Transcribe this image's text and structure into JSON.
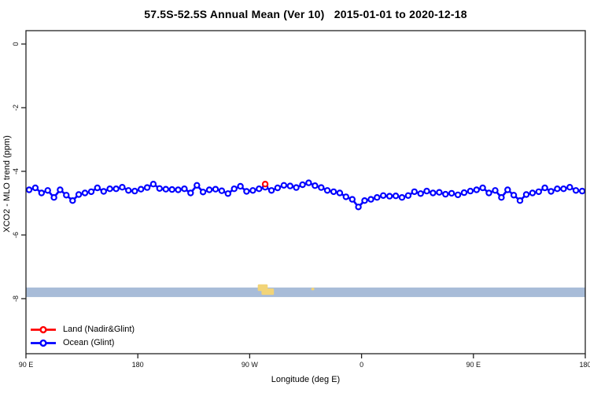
{
  "title": "57.5S-52.5S Annual Mean (Ver 10)   2015-01-01 to 2020-12-18",
  "axes": {
    "x_label": "Longitude (deg E)",
    "y_label": "XCO2 - MLO trend (ppm)"
  },
  "legend": {
    "items": [
      {
        "label": "Land (Nadir&Glint)",
        "color": "#ff0000"
      },
      {
        "label": "Ocean (Glint)",
        "color": "#0000ff"
      }
    ]
  },
  "colors": {
    "ocean_series": "#0000ff",
    "land_series": "#ff0000",
    "map_strip_ocean": "#a8bcd8",
    "map_strip_land": "#f2d478",
    "frame": "#222222"
  },
  "chart_data": {
    "type": "line",
    "title": "57.5S-52.5S Annual Mean (Ver 10)   2015-01-01 to 2020-12-18",
    "xlabel": "Longitude (deg E)",
    "ylabel": "XCO2 - MLO trend (ppm)",
    "xlim": [
      90,
      540
    ],
    "ylim": [
      -9.73,
      0.42
    ],
    "grid": false,
    "legend_position": "bottom-left",
    "x_ticks": [
      {
        "value": 90,
        "label": "90 E"
      },
      {
        "value": 180,
        "label": "180"
      },
      {
        "value": 270,
        "label": "90 W"
      },
      {
        "value": 360,
        "label": "0"
      },
      {
        "value": 450,
        "label": "90 E"
      },
      {
        "value": 540,
        "label": "180"
      }
    ],
    "y_ticks": [
      {
        "value": 0,
        "label": "0"
      },
      {
        "value": -2,
        "label": "-2"
      },
      {
        "value": -4,
        "label": "-4"
      },
      {
        "value": -6,
        "label": "-6"
      },
      {
        "value": -8,
        "label": "-8"
      }
    ],
    "series": [
      {
        "name": "Ocean (Glint)",
        "color": "#0000ff",
        "marker": "open-circle",
        "x": [
          92.5,
          97.5,
          102.5,
          107.5,
          112.5,
          117.5,
          122.5,
          127.5,
          132.5,
          137.5,
          142.5,
          147.5,
          152.5,
          157.5,
          162.5,
          167.5,
          172.5,
          177.5,
          182.5,
          187.5,
          192.5,
          197.5,
          202.5,
          207.5,
          212.5,
          217.5,
          222.5,
          227.5,
          232.5,
          237.5,
          242.5,
          247.5,
          252.5,
          257.5,
          262.5,
          267.5,
          272.5,
          277.5,
          282.5,
          287.5,
          292.5,
          297.5,
          302.5,
          307.5,
          312.5,
          317.5,
          322.5,
          327.5,
          332.5,
          337.5,
          342.5,
          347.5,
          352.5,
          357.5,
          362.5,
          367.5,
          372.5,
          377.5,
          382.5,
          387.5,
          392.5,
          397.5,
          402.5,
          407.5,
          412.5,
          417.5,
          422.5,
          427.5,
          432.5,
          437.5,
          442.5,
          447.5,
          452.5,
          457.5,
          462.5,
          467.5,
          472.5,
          477.5,
          482.5,
          487.5,
          492.5,
          497.5,
          502.5,
          507.5,
          512.5,
          517.5,
          522.5,
          527.5,
          532.5,
          537.5
        ],
        "y": [
          -4.58,
          -4.52,
          -4.68,
          -4.6,
          -4.82,
          -4.58,
          -4.75,
          -4.92,
          -4.73,
          -4.68,
          -4.64,
          -4.52,
          -4.63,
          -4.55,
          -4.55,
          -4.5,
          -4.6,
          -4.62,
          -4.56,
          -4.51,
          -4.4,
          -4.54,
          -4.56,
          -4.57,
          -4.58,
          -4.55,
          -4.68,
          -4.44,
          -4.65,
          -4.58,
          -4.56,
          -4.61,
          -4.7,
          -4.55,
          -4.47,
          -4.63,
          -4.6,
          -4.55,
          -4.5,
          -4.6,
          -4.52,
          -4.44,
          -4.46,
          -4.51,
          -4.42,
          -4.36,
          -4.45,
          -4.51,
          -4.6,
          -4.64,
          -4.68,
          -4.8,
          -4.88,
          -5.12,
          -4.92,
          -4.88,
          -4.82,
          -4.76,
          -4.78,
          -4.77,
          -4.82,
          -4.76,
          -4.64,
          -4.7,
          -4.62,
          -4.68,
          -4.66,
          -4.72,
          -4.69,
          -4.74,
          -4.67,
          -4.62,
          -4.58,
          -4.52,
          -4.68,
          -4.6,
          -4.82,
          -4.58,
          -4.75,
          -4.92,
          -4.73,
          -4.68,
          -4.64,
          -4.52,
          -4.63,
          -4.55,
          -4.55,
          -4.5,
          -4.6,
          -4.62
        ]
      },
      {
        "name": "Land (Nadir&Glint)",
        "color": "#ff0000",
        "marker": "open-circle",
        "x": [
          282.5
        ],
        "y": [
          -4.4
        ]
      }
    ],
    "map_strip": {
      "ocean_color": "#a8bcd8",
      "land_color": "#f2d478",
      "v_top": -7.65,
      "v_bottom": -7.95,
      "land_patches": [
        {
          "lon_min": 276.5,
          "lon_max": 284.5,
          "v_top": -7.55,
          "v_bottom": -7.76
        },
        {
          "lon_min": 279.5,
          "lon_max": 289.5,
          "v_top": -7.68,
          "v_bottom": -7.88
        },
        {
          "lon_min": 319.5,
          "lon_max": 322.0,
          "v_top": -7.66,
          "v_bottom": -7.74
        }
      ]
    }
  }
}
